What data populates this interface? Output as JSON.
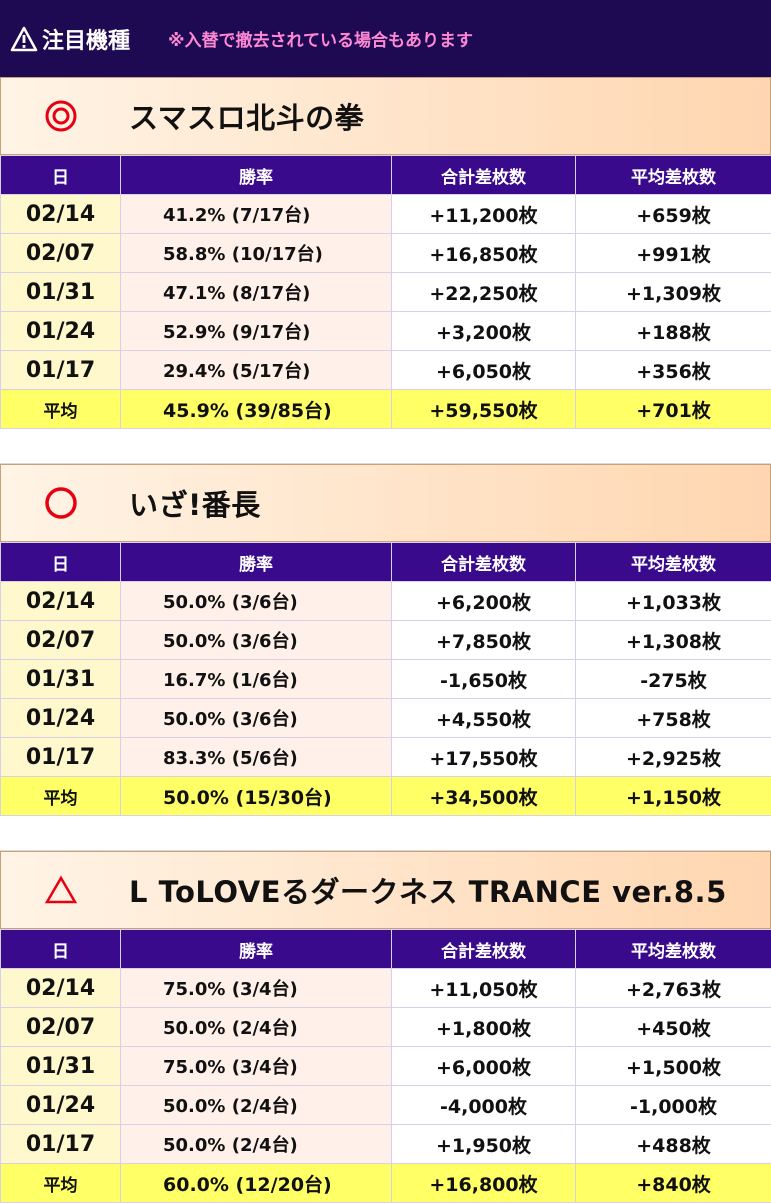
{
  "banner": {
    "title": "注目機種",
    "note": "※入替で撤去されている場合もあります"
  },
  "headers": {
    "date": "日",
    "win_rate": "勝率",
    "total_diff": "合計差枚数",
    "avg_diff": "平均差枚数"
  },
  "sections": [
    {
      "mark": "◎",
      "name": "スマスロ北斗の拳",
      "rows": [
        {
          "date": "02/14",
          "rate": "41.2% (7/17台)",
          "total": "+11,200枚",
          "avg": "+659枚"
        },
        {
          "date": "02/07",
          "rate": "58.8% (10/17台)",
          "total": "+16,850枚",
          "avg": "+991枚"
        },
        {
          "date": "01/31",
          "rate": "47.1% (8/17台)",
          "total": "+22,250枚",
          "avg": "+1,309枚"
        },
        {
          "date": "01/24",
          "rate": "52.9% (9/17台)",
          "total": "+3,200枚",
          "avg": "+188枚"
        },
        {
          "date": "01/17",
          "rate": "29.4% (5/17台)",
          "total": "+6,050枚",
          "avg": "+356枚"
        }
      ],
      "average": {
        "label": "平均",
        "rate": "45.9% (39/85台)",
        "total": "+59,550枚",
        "avg": "+701枚"
      }
    },
    {
      "mark": "○",
      "name": "いざ!番長",
      "rows": [
        {
          "date": "02/14",
          "rate": "50.0% (3/6台)",
          "total": "+6,200枚",
          "avg": "+1,033枚"
        },
        {
          "date": "02/07",
          "rate": "50.0% (3/6台)",
          "total": "+7,850枚",
          "avg": "+1,308枚"
        },
        {
          "date": "01/31",
          "rate": "16.7% (1/6台)",
          "total": "-1,650枚",
          "avg": "-275枚"
        },
        {
          "date": "01/24",
          "rate": "50.0% (3/6台)",
          "total": "+4,550枚",
          "avg": "+758枚"
        },
        {
          "date": "01/17",
          "rate": "83.3% (5/6台)",
          "total": "+17,550枚",
          "avg": "+2,925枚"
        }
      ],
      "average": {
        "label": "平均",
        "rate": "50.0% (15/30台)",
        "total": "+34,500枚",
        "avg": "+1,150枚"
      }
    },
    {
      "mark": "△",
      "name": "L ToLOVEるダークネス TRANCE ver.8.5",
      "rows": [
        {
          "date": "02/14",
          "rate": "75.0% (3/4台)",
          "total": "+11,050枚",
          "avg": "+2,763枚"
        },
        {
          "date": "02/07",
          "rate": "50.0% (2/4台)",
          "total": "+1,800枚",
          "avg": "+450枚"
        },
        {
          "date": "01/31",
          "rate": "75.0% (3/4台)",
          "total": "+6,000枚",
          "avg": "+1,500枚"
        },
        {
          "date": "01/24",
          "rate": "50.0% (2/4台)",
          "total": "-4,000枚",
          "avg": "-1,000枚"
        },
        {
          "date": "01/17",
          "rate": "50.0% (2/4台)",
          "total": "+1,950枚",
          "avg": "+488枚"
        }
      ],
      "average": {
        "label": "平均",
        "rate": "60.0% (12/20台)",
        "total": "+16,800枚",
        "avg": "+840枚"
      }
    }
  ]
}
